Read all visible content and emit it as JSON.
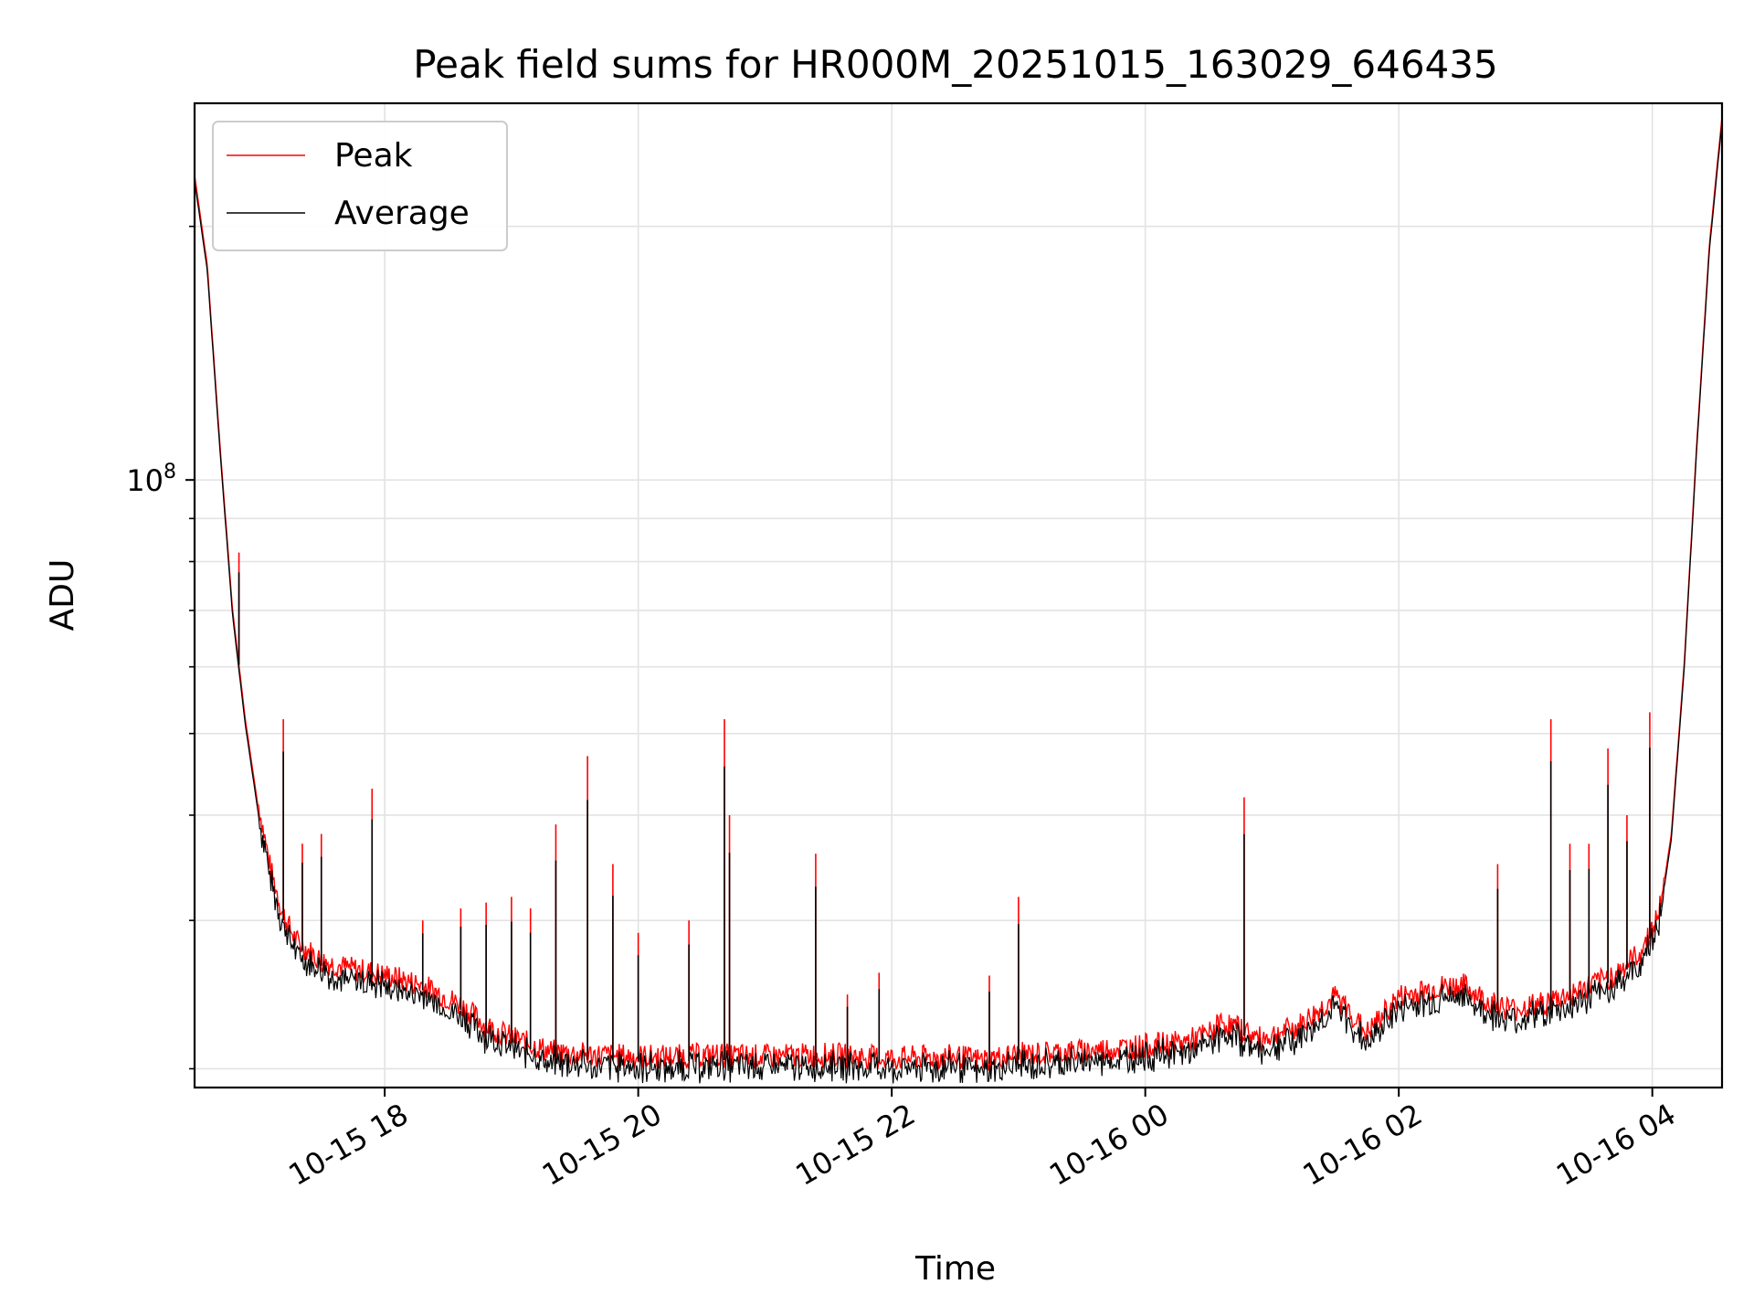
{
  "chart_data": {
    "type": "line",
    "title": "Peak field sums for HR000M_20251015_163029_646435",
    "xlabel": "Time",
    "ylabel": "ADU",
    "yscale": "log",
    "ylim": [
      19000000,
      280000000
    ],
    "xlim": [
      16.5,
      28.55
    ],
    "grid": true,
    "legend_position": "upper-left",
    "x_ticks": [
      {
        "value": 18,
        "label": "10-15 18"
      },
      {
        "value": 20,
        "label": "10-15 20"
      },
      {
        "value": 22,
        "label": "10-15 22"
      },
      {
        "value": 24,
        "label": "10-16 00"
      },
      {
        "value": 26,
        "label": "10-16 02"
      },
      {
        "value": 28,
        "label": "10-16 04"
      }
    ],
    "y_major_ticks": [
      {
        "value": 100000000,
        "base": "10",
        "exp": "8"
      }
    ],
    "y_minor_ticks": [
      20000000,
      30000000,
      40000000,
      50000000,
      60000000,
      70000000,
      80000000,
      90000000,
      200000000
    ],
    "series": [
      {
        "name": "Peak",
        "color": "#ff0000",
        "baseline": {
          "x": [
            16.5,
            16.6,
            16.7,
            16.8,
            16.9,
            17.0,
            17.1,
            17.2,
            17.3,
            17.5,
            17.7,
            18.0,
            18.3,
            18.6,
            18.8,
            19.0,
            19.3,
            19.6,
            20.0,
            20.3,
            20.6,
            21.0,
            21.5,
            22.0,
            22.5,
            22.7,
            23.0,
            23.5,
            24.0,
            24.3,
            24.5,
            24.6,
            24.75,
            24.9,
            25.2,
            25.35,
            25.5,
            25.6,
            25.75,
            25.9,
            26.0,
            26.3,
            26.5,
            26.7,
            26.9,
            27.1,
            27.4,
            27.7,
            27.9,
            28.05,
            28.15,
            28.25,
            28.35,
            28.45,
            28.55
          ],
          "y": [
            230000000,
            180000000,
            110000000,
            70000000,
            52000000,
            41000000,
            34000000,
            30000000,
            28000000,
            26500000,
            26000000,
            25500000,
            24800000,
            23500000,
            22200000,
            21500000,
            20700000,
            20500000,
            20400000,
            20400000,
            20500000,
            20400000,
            20500000,
            20300000,
            20400000,
            20200000,
            20500000,
            20700000,
            21000000,
            21200000,
            21700000,
            22400000,
            22000000,
            21400000,
            22100000,
            23000000,
            24000000,
            23200000,
            21700000,
            23100000,
            24000000,
            24600000,
            24800000,
            23700000,
            23200000,
            23500000,
            24300000,
            25500000,
            27000000,
            30000000,
            38000000,
            60000000,
            110000000,
            190000000,
            270000000
          ]
        },
        "spikes": [
          {
            "x": 16.85,
            "y": 82000000
          },
          {
            "x": 17.05,
            "y": 37000000
          },
          {
            "x": 17.2,
            "y": 52000000
          },
          {
            "x": 17.35,
            "y": 37000000
          },
          {
            "x": 17.5,
            "y": 38000000
          },
          {
            "x": 17.9,
            "y": 43000000
          },
          {
            "x": 18.3,
            "y": 30000000
          },
          {
            "x": 18.6,
            "y": 31000000
          },
          {
            "x": 18.8,
            "y": 31500000
          },
          {
            "x": 19.0,
            "y": 32000000
          },
          {
            "x": 19.15,
            "y": 31000000
          },
          {
            "x": 19.35,
            "y": 39000000
          },
          {
            "x": 19.6,
            "y": 47000000
          },
          {
            "x": 19.8,
            "y": 35000000
          },
          {
            "x": 20.0,
            "y": 29000000
          },
          {
            "x": 20.4,
            "y": 30000000
          },
          {
            "x": 20.68,
            "y": 52000000
          },
          {
            "x": 20.72,
            "y": 40000000
          },
          {
            "x": 21.4,
            "y": 36000000
          },
          {
            "x": 21.65,
            "y": 24500000
          },
          {
            "x": 21.9,
            "y": 26000000
          },
          {
            "x": 22.4,
            "y": 20800000
          },
          {
            "x": 22.77,
            "y": 25800000
          },
          {
            "x": 23.0,
            "y": 32000000
          },
          {
            "x": 23.9,
            "y": 21500000
          },
          {
            "x": 24.78,
            "y": 42000000
          },
          {
            "x": 26.78,
            "y": 35000000
          },
          {
            "x": 27.2,
            "y": 52000000
          },
          {
            "x": 27.35,
            "y": 37000000
          },
          {
            "x": 27.5,
            "y": 37000000
          },
          {
            "x": 27.65,
            "y": 48000000
          },
          {
            "x": 27.8,
            "y": 40000000
          },
          {
            "x": 27.98,
            "y": 53000000
          }
        ]
      },
      {
        "name": "Average",
        "color": "#000000",
        "baseline_ratio": 0.985,
        "spike_ratio": 0.8
      }
    ]
  }
}
